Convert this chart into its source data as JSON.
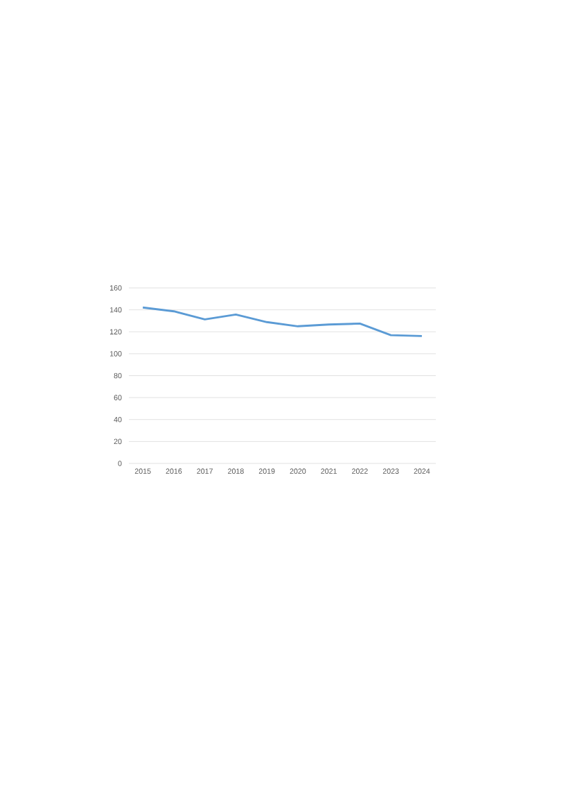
{
  "chart_data": {
    "type": "line",
    "categories": [
      "2015",
      "2016",
      "2017",
      "2018",
      "2019",
      "2020",
      "2021",
      "2022",
      "2023",
      "2024"
    ],
    "series": [
      {
        "color": "#5b9bd5",
        "values": [
          142.1,
          138.7,
          131.3,
          135.7,
          128.8,
          125.0,
          126.6,
          127.5,
          116.9,
          116.1
        ]
      }
    ],
    "ylim": [
      0,
      160
    ],
    "yticks": [
      0,
      20,
      40,
      60,
      80,
      100,
      120,
      140,
      160
    ],
    "grid": "y"
  }
}
